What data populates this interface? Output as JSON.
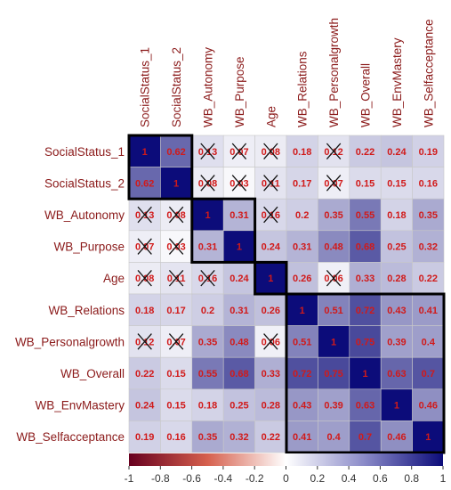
{
  "chart_data": {
    "type": "heatmap",
    "variables": [
      "SocialStatus_1",
      "SocialStatus_2",
      "WB_Autonomy",
      "WB_Purpose",
      "Age",
      "WB_Relations",
      "WB_Personalgrowth",
      "WB_Overall",
      "WB_EnvMastery",
      "WB_Selfacceptance"
    ],
    "matrix": [
      [
        1,
        0.62,
        0.13,
        0.07,
        0.08,
        0.18,
        0.12,
        0.22,
        0.24,
        0.19
      ],
      [
        0.62,
        1,
        0.08,
        0.03,
        0.11,
        0.17,
        0.07,
        0.15,
        0.15,
        0.16
      ],
      [
        0.13,
        0.08,
        1,
        0.31,
        0.16,
        0.2,
        0.35,
        0.55,
        0.18,
        0.35
      ],
      [
        0.07,
        0.03,
        0.31,
        1,
        0.24,
        0.31,
        0.48,
        0.68,
        0.25,
        0.32
      ],
      [
        0.08,
        0.11,
        0.16,
        0.24,
        1,
        0.26,
        0.06,
        0.33,
        0.28,
        0.22
      ],
      [
        0.18,
        0.17,
        0.2,
        0.31,
        0.26,
        1,
        0.51,
        0.72,
        0.43,
        0.41
      ],
      [
        0.12,
        0.07,
        0.35,
        0.48,
        0.06,
        0.51,
        1,
        0.75,
        0.39,
        0.4
      ],
      [
        0.22,
        0.15,
        0.55,
        0.68,
        0.33,
        0.72,
        0.75,
        1,
        0.63,
        0.7
      ],
      [
        0.24,
        0.15,
        0.18,
        0.25,
        0.28,
        0.43,
        0.39,
        0.63,
        1,
        0.46
      ],
      [
        0.19,
        0.16,
        0.35,
        0.32,
        0.22,
        0.41,
        0.4,
        0.7,
        0.46,
        1
      ]
    ],
    "value_labels": [
      [
        "1",
        "0.62",
        "0.13",
        "0.07",
        "0.08",
        "0.18",
        "0.12",
        "0.22",
        "0.24",
        "0.19"
      ],
      [
        "0.62",
        "1",
        "0.08",
        "0.03",
        "0.11",
        "0.17",
        "0.07",
        "0.15",
        "0.15",
        "0.16"
      ],
      [
        "0.13",
        "0.08",
        "1",
        "0.31",
        "0.16",
        "0.2",
        "0.35",
        "0.55",
        "0.18",
        "0.35"
      ],
      [
        "0.07",
        "0.03",
        "0.31",
        "1",
        "0.24",
        "0.31",
        "0.48",
        "0.68",
        "0.25",
        "0.32"
      ],
      [
        "0.08",
        "0.11",
        "0.16",
        "0.24",
        "1",
        "0.26",
        "0.06",
        "0.33",
        "0.28",
        "0.22"
      ],
      [
        "0.18",
        "0.17",
        "0.2",
        "0.31",
        "0.26",
        "1",
        "0.51",
        "0.72",
        "0.43",
        "0.41"
      ],
      [
        "0.12",
        "0.07",
        "0.35",
        "0.48",
        "0.06",
        "0.51",
        "1",
        "0.75",
        "0.39",
        "0.4"
      ],
      [
        "0.22",
        "0.15",
        "0.55",
        "0.68",
        "0.33",
        "0.72",
        "0.75",
        "1",
        "0.63",
        "0.7"
      ],
      [
        "0.24",
        "0.15",
        "0.18",
        "0.25",
        "0.28",
        "0.43",
        "0.39",
        "0.63",
        "1",
        "0.46"
      ],
      [
        "0.19",
        "0.16",
        "0.35",
        "0.32",
        "0.22",
        "0.41",
        "0.4",
        "0.7",
        "0.46",
        "1"
      ]
    ],
    "crossed_out": [
      [
        0,
        2
      ],
      [
        0,
        3
      ],
      [
        0,
        4
      ],
      [
        0,
        6
      ],
      [
        1,
        2
      ],
      [
        1,
        3
      ],
      [
        1,
        4
      ],
      [
        1,
        6
      ],
      [
        2,
        0
      ],
      [
        2,
        1
      ],
      [
        2,
        4
      ],
      [
        3,
        0
      ],
      [
        3,
        1
      ],
      [
        4,
        0
      ],
      [
        4,
        1
      ],
      [
        4,
        2
      ],
      [
        4,
        6
      ],
      [
        6,
        0
      ],
      [
        6,
        1
      ],
      [
        6,
        4
      ]
    ],
    "cluster_boxes": [
      {
        "start": 0,
        "end": 1
      },
      {
        "start": 2,
        "end": 3
      },
      {
        "start": 4,
        "end": 4
      },
      {
        "start": 5,
        "end": 9
      }
    ],
    "color_scale": {
      "min": -1,
      "max": 1,
      "ticks": [
        "-1",
        "-0.8",
        "-0.6",
        "-0.4",
        "-0.2",
        "0",
        "0.2",
        "0.4",
        "0.6",
        "0.8",
        "1"
      ],
      "neg_color": "#67001f",
      "mid_color": "#ffffff",
      "pos_color": "#0c0c7a"
    },
    "label_color": "#8b1a1a",
    "value_text_color": "#d11a1a"
  }
}
